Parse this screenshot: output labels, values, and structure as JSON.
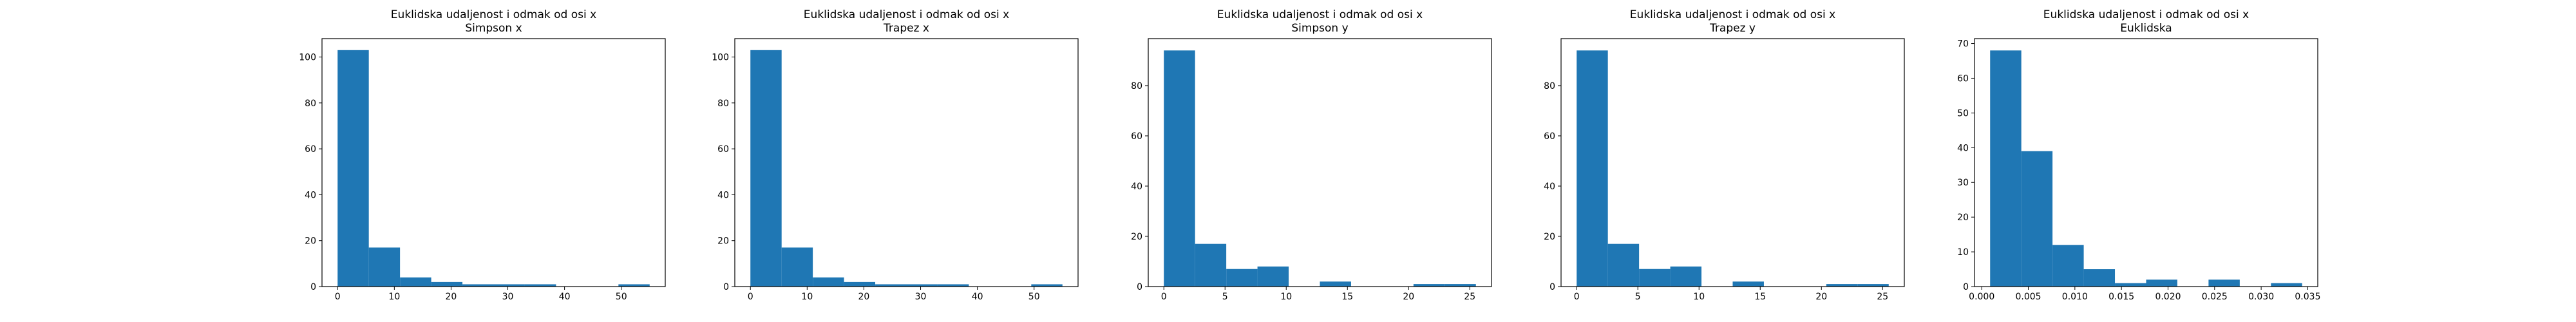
{
  "chart_data": [
    {
      "type": "bar",
      "title": "Euklidska udaljenost i odmak od osi x",
      "subtitle": "Simpson x",
      "xlabel": "",
      "ylabel": "",
      "bin_edges": [
        0.0,
        5.5,
        11.0,
        16.5,
        22.0,
        27.5,
        33.0,
        38.5,
        44.0,
        49.5,
        55.0
      ],
      "values": [
        103,
        17,
        4,
        2,
        1,
        1,
        1,
        0,
        0,
        1
      ],
      "xlim": [
        -2.75,
        57.75
      ],
      "ylim": [
        0,
        108
      ],
      "xticks": [
        0,
        10,
        20,
        30,
        40,
        50
      ],
      "xtick_labels": [
        "0",
        "10",
        "20",
        "30",
        "40",
        "50"
      ],
      "yticks": [
        0,
        20,
        40,
        60,
        80,
        100
      ],
      "ytick_labels": [
        "0",
        "20",
        "40",
        "60",
        "80",
        "100"
      ],
      "color": "#1f77b4",
      "grid": false
    },
    {
      "type": "bar",
      "title": "Euklidska udaljenost i odmak od osi x",
      "subtitle": "Trapez x",
      "xlabel": "",
      "ylabel": "",
      "bin_edges": [
        0.0,
        5.5,
        11.0,
        16.5,
        22.0,
        27.5,
        33.0,
        38.5,
        44.0,
        49.5,
        55.0
      ],
      "values": [
        103,
        17,
        4,
        2,
        1,
        1,
        1,
        0,
        0,
        1
      ],
      "xlim": [
        -2.75,
        57.75
      ],
      "ylim": [
        0,
        108
      ],
      "xticks": [
        0,
        10,
        20,
        30,
        40,
        50
      ],
      "xtick_labels": [
        "0",
        "10",
        "20",
        "30",
        "40",
        "50"
      ],
      "yticks": [
        0,
        20,
        40,
        60,
        80,
        100
      ],
      "ytick_labels": [
        "0",
        "20",
        "40",
        "60",
        "80",
        "100"
      ],
      "color": "#1f77b4",
      "grid": false
    },
    {
      "type": "bar",
      "title": "Euklidska udaljenost i odmak od osi x",
      "subtitle": "Simpson y",
      "xlabel": "",
      "ylabel": "",
      "bin_edges": [
        0.0,
        2.55,
        5.1,
        7.65,
        10.2,
        12.75,
        15.3,
        17.85,
        20.4,
        22.95,
        25.5
      ],
      "values": [
        94,
        17,
        7,
        8,
        0,
        2,
        0,
        0,
        1,
        1
      ],
      "xlim": [
        -1.275,
        26.775
      ],
      "ylim": [
        0,
        98.7
      ],
      "xticks": [
        0,
        5,
        10,
        15,
        20,
        25
      ],
      "xtick_labels": [
        "0",
        "5",
        "10",
        "15",
        "20",
        "25"
      ],
      "yticks": [
        0,
        20,
        40,
        60,
        80
      ],
      "ytick_labels": [
        "0",
        "20",
        "40",
        "60",
        "80"
      ],
      "color": "#1f77b4",
      "grid": false
    },
    {
      "type": "bar",
      "title": "Euklidska udaljenost i odmak od osi x",
      "subtitle": "Trapez y",
      "xlabel": "",
      "ylabel": "",
      "bin_edges": [
        0.0,
        2.55,
        5.1,
        7.65,
        10.2,
        12.75,
        15.3,
        17.85,
        20.4,
        22.95,
        25.5
      ],
      "values": [
        94,
        17,
        7,
        8,
        0,
        2,
        0,
        0,
        1,
        1
      ],
      "xlim": [
        -1.275,
        26.775
      ],
      "ylim": [
        0,
        98.7
      ],
      "xticks": [
        0,
        5,
        10,
        15,
        20,
        25
      ],
      "xtick_labels": [
        "0",
        "5",
        "10",
        "15",
        "20",
        "25"
      ],
      "yticks": [
        0,
        20,
        40,
        60,
        80
      ],
      "ytick_labels": [
        "0",
        "20",
        "40",
        "60",
        "80"
      ],
      "color": "#1f77b4",
      "grid": false
    },
    {
      "type": "bar",
      "title": "Euklidska udaljenost i odmak od osi x",
      "subtitle": "Euklidska",
      "xlabel": "",
      "ylabel": "",
      "bin_edges": [
        0.0009,
        0.00425,
        0.0076,
        0.01095,
        0.0143,
        0.01765,
        0.021,
        0.02435,
        0.0277,
        0.03105,
        0.0344
      ],
      "values": [
        68,
        39,
        12,
        5,
        1,
        2,
        0,
        2,
        0,
        1
      ],
      "xlim": [
        -0.000775,
        0.036075
      ],
      "ylim": [
        0,
        71.4
      ],
      "xticks": [
        0.0,
        0.005,
        0.01,
        0.015,
        0.02,
        0.025,
        0.03,
        0.035
      ],
      "xtick_labels": [
        "0.000",
        "0.005",
        "0.010",
        "0.015",
        "0.020",
        "0.025",
        "0.030",
        "0.035"
      ],
      "yticks": [
        0,
        10,
        20,
        30,
        40,
        50,
        60,
        70
      ],
      "ytick_labels": [
        "0",
        "10",
        "20",
        "30",
        "40",
        "50",
        "60",
        "70"
      ],
      "color": "#1f77b4",
      "grid": false
    }
  ]
}
